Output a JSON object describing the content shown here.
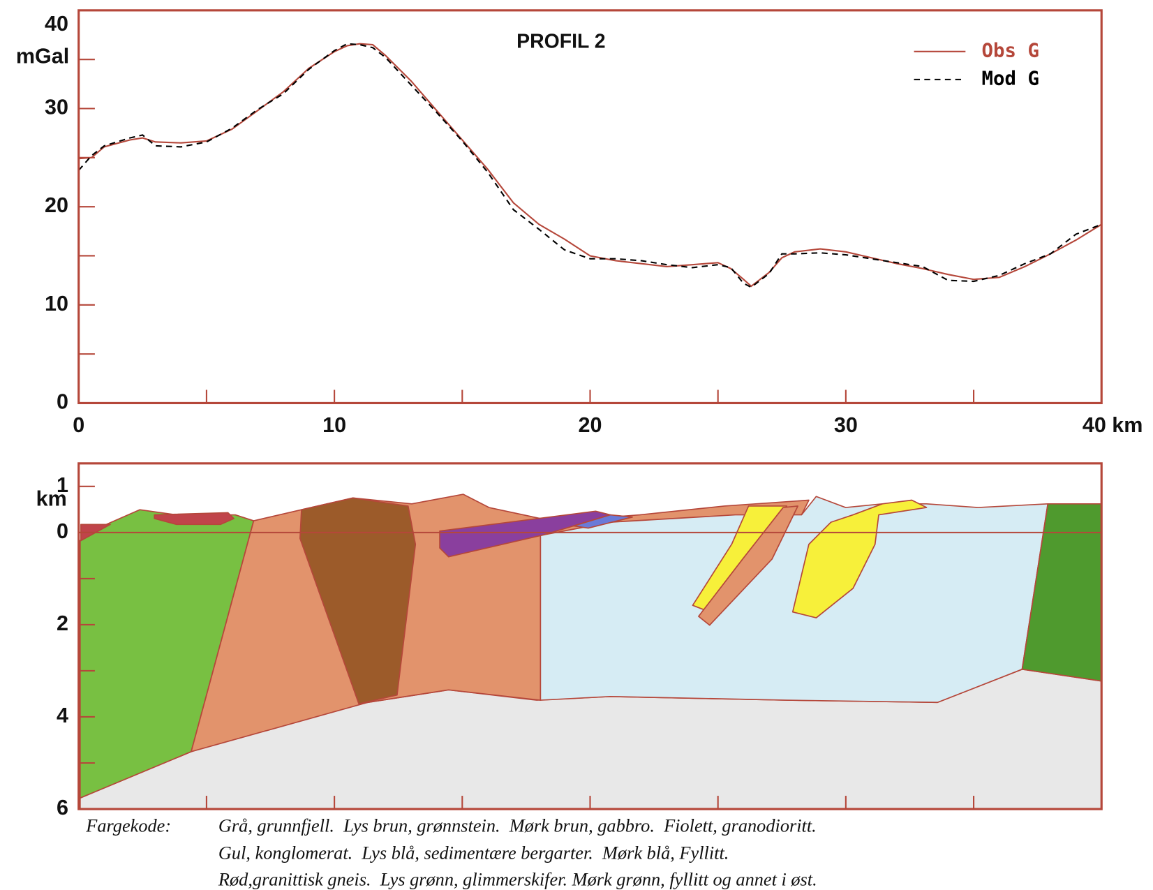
{
  "chart_data": [
    {
      "type": "line",
      "title": "PROFIL 2",
      "ylabel": "mGal",
      "x": [
        0,
        0.5,
        1,
        2,
        2.5,
        3,
        4,
        5,
        6,
        7,
        8,
        9,
        10,
        10.5,
        11,
        11.5,
        12,
        13,
        14,
        15,
        16,
        17,
        18,
        19,
        20,
        21,
        22,
        23,
        24,
        25,
        25.5,
        26,
        26.3,
        27,
        27.5,
        28,
        29,
        30,
        31,
        32,
        33,
        34,
        35,
        36,
        37,
        38,
        39,
        40
      ],
      "series": [
        {
          "name": "Obs G",
          "color": "#b5473a",
          "style": "solid",
          "values": [
            24.9,
            25.0,
            26.1,
            26.8,
            27.0,
            26.6,
            26.5,
            26.7,
            27.9,
            29.8,
            31.7,
            34.1,
            35.8,
            36.4,
            36.6,
            36.5,
            35.4,
            32.8,
            29.8,
            26.8,
            23.8,
            20.4,
            18.2,
            16.7,
            15.0,
            14.5,
            14.2,
            13.9,
            14.1,
            14.3,
            13.7,
            12.6,
            11.9,
            13.3,
            14.8,
            15.4,
            15.7,
            15.4,
            14.8,
            14.2,
            13.7,
            13.1,
            12.6,
            12.8,
            13.9,
            15.2,
            16.6,
            18.2
          ]
        },
        {
          "name": "Mod G",
          "color": "#000000",
          "style": "dashed",
          "values": [
            23.7,
            25.2,
            26.2,
            27.0,
            27.3,
            26.2,
            26.1,
            26.6,
            28.0,
            29.9,
            31.5,
            34.0,
            35.9,
            36.6,
            36.5,
            36.2,
            35.2,
            32.4,
            29.6,
            26.7,
            23.5,
            19.7,
            17.7,
            15.6,
            14.7,
            14.7,
            14.5,
            14.1,
            13.8,
            14.1,
            13.8,
            12.2,
            11.8,
            13.2,
            15.2,
            15.2,
            15.3,
            15.1,
            14.7,
            14.3,
            13.9,
            12.5,
            12.4,
            13.0,
            14.2,
            15.2,
            17.2,
            18.2
          ]
        }
      ],
      "xlim": [
        0,
        40
      ],
      "xticks": [
        0,
        10,
        20,
        30,
        {
          "value": 40,
          "label": "40 km"
        }
      ],
      "minor_xticks": [
        5,
        15,
        25,
        35
      ],
      "ylim": [
        0,
        40
      ],
      "yticks": [
        0,
        10,
        20,
        30,
        40
      ],
      "minor_yticks": [
        5,
        15,
        25,
        35
      ],
      "legend": "upper right"
    },
    {
      "type": "section",
      "ylabel": "km",
      "xlim": [
        0,
        40
      ],
      "minor_xticks": [
        5,
        10,
        15,
        20,
        25,
        30,
        35
      ],
      "ylim": [
        -1.5,
        6
      ],
      "y_inverted": true,
      "yticks": [
        {
          "value": -1,
          "label": "1"
        },
        0,
        2,
        4,
        6
      ],
      "minor_yticks": [
        1,
        3,
        5
      ],
      "zero_line": true
    }
  ],
  "caption": {
    "label": "Fargekode:",
    "lines": [
      "Grå, grunnfjell.  Lys brun, grønnstein.  Mørk brun, gabbro.  Fiolett, granodioritt.",
      "Gul, konglomerat.  Lys blå, sedimentære bergarter.  Mørk blå, Fyllitt.",
      "Rød,granittisk gneis.  Lys grønn, glimmerskifer. Mørk grønn, fyllitt og annet i øst."
    ]
  }
}
